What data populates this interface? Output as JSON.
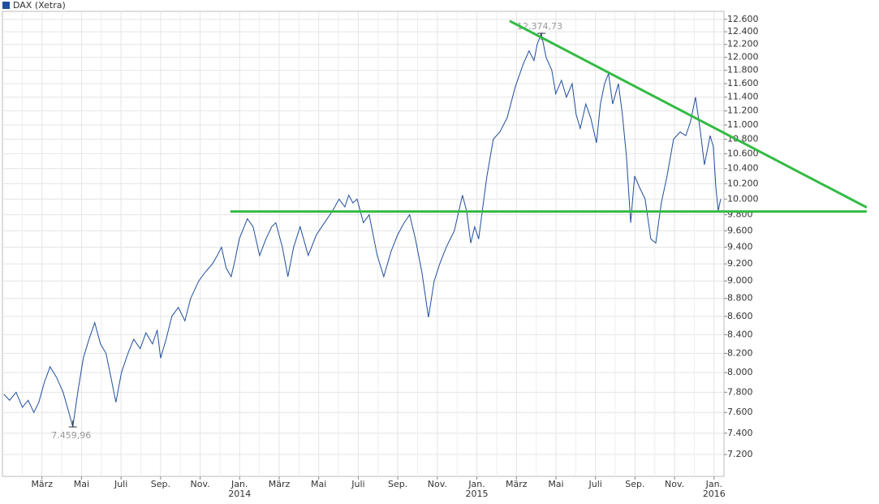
{
  "chart_data": {
    "type": "line",
    "legend": "top-left",
    "log_scale": true,
    "grid": true,
    "series": [
      {
        "name": "DAX (Xetra)",
        "color": "#1f4e9c",
        "values": [
          7780,
          7720,
          7800,
          7650,
          7720,
          7600,
          7700,
          7900,
          8060,
          7950,
          7800,
          7600,
          7459.96,
          7800,
          8150,
          8350,
          8530,
          8300,
          8200,
          7950,
          7700,
          8000,
          8200,
          8350,
          8250,
          8420,
          8300,
          8450,
          8150,
          8350,
          8600,
          8700,
          8550,
          8800,
          9000,
          9100,
          9200,
          9300,
          9400,
          9150,
          9050,
          9250,
          9500,
          9750,
          9650,
          9300,
          9500,
          9650,
          9700,
          9400,
          9050,
          9400,
          9650,
          9300,
          9550,
          9700,
          9850,
          10000,
          9900,
          10050,
          9950,
          10000,
          9700,
          9800,
          9300,
          9050,
          9350,
          9550,
          9700,
          9800,
          9500,
          9100,
          8590,
          9000,
          9200,
          9400,
          9600,
          10050,
          9850,
          9450,
          9650,
          9500,
          9900,
          10300,
          10800,
          10900,
          11100,
          11550,
          11900,
          12100,
          11950,
          12200,
          12374.73,
          12000,
          11800,
          11450,
          11650,
          11400,
          11600,
          11150,
          10950,
          11300,
          11100,
          10750,
          11300,
          11600,
          11750,
          11300,
          11600,
          11150,
          10550,
          9700,
          10300,
          10150,
          10000,
          9500,
          9450,
          9950,
          10300,
          10800,
          10900,
          10850,
          11050,
          11400,
          10900,
          10450,
          10850,
          10700,
          10150,
          9850,
          10000
        ]
      }
    ],
    "x": [
      0.07,
      0.36,
      0.69,
      1.01,
      1.3,
      1.59,
      1.84,
      2.12,
      2.41,
      2.74,
      3.07,
      3.36,
      3.56,
      3.81,
      4.09,
      4.38,
      4.67,
      4.96,
      5.24,
      5.49,
      5.74,
      6.02,
      6.35,
      6.64,
      6.97,
      7.26,
      7.59,
      7.83,
      8.0,
      8.28,
      8.57,
      8.9,
      9.23,
      9.52,
      9.93,
      10.25,
      10.62,
      10.87,
      11.08,
      11.32,
      11.57,
      11.77,
      11.98,
      12.39,
      12.68,
      13.01,
      13.33,
      13.62,
      13.83,
      14.16,
      14.44,
      14.73,
      15.06,
      15.47,
      15.88,
      16.29,
      16.7,
      17.03,
      17.32,
      17.52,
      17.73,
      17.94,
      18.26,
      18.55,
      18.96,
      19.29,
      19.66,
      19.99,
      20.32,
      20.6,
      20.89,
      21.22,
      21.55,
      21.84,
      22.12,
      22.45,
      22.86,
      23.27,
      23.48,
      23.69,
      23.89,
      24.09,
      24.3,
      24.51,
      24.83,
      25.16,
      25.53,
      25.94,
      26.35,
      26.64,
      26.89,
      27.05,
      27.26,
      27.5,
      27.79,
      27.99,
      28.28,
      28.53,
      28.82,
      29.02,
      29.23,
      29.51,
      29.76,
      30.05,
      30.25,
      30.46,
      30.66,
      30.87,
      31.16,
      31.36,
      31.57,
      31.78,
      31.98,
      32.23,
      32.51,
      32.8,
      33.05,
      33.33,
      33.62,
      33.95,
      34.28,
      34.57,
      34.81,
      35.06,
      35.31,
      35.51,
      35.8,
      35.96,
      36.09,
      36.21,
      36.33
    ],
    "xlim": [
      0,
      36.5
    ],
    "xticks": [
      {
        "value": 2,
        "label": "März"
      },
      {
        "value": 4,
        "label": "Mai"
      },
      {
        "value": 6,
        "label": "Juli"
      },
      {
        "value": 8,
        "label": "Sep."
      },
      {
        "value": 10,
        "label": "Nov."
      },
      {
        "value": 12,
        "label": "Jan."
      },
      {
        "value": 14,
        "label": "März"
      },
      {
        "value": 16,
        "label": "Mai"
      },
      {
        "value": 18,
        "label": "Juli"
      },
      {
        "value": 20,
        "label": "Sep."
      },
      {
        "value": 22,
        "label": "Nov."
      },
      {
        "value": 24,
        "label": "Jan."
      },
      {
        "value": 26,
        "label": "März"
      },
      {
        "value": 28,
        "label": "Mai"
      },
      {
        "value": 30,
        "label": "Juli"
      },
      {
        "value": 32,
        "label": "Sep."
      },
      {
        "value": 34,
        "label": "Nov."
      },
      {
        "value": 36,
        "label": "Jan."
      }
    ],
    "xminor_ticks": [
      1,
      3,
      5,
      7,
      9,
      11,
      13,
      15,
      17,
      19,
      21,
      23,
      25,
      27,
      29,
      31,
      33,
      35
    ],
    "year_labels": [
      {
        "value": 12,
        "label": "2014"
      },
      {
        "value": 24,
        "label": "2015"
      },
      {
        "value": 36,
        "label": "2016"
      }
    ],
    "ylim": [
      7000,
      12730
    ],
    "yticks": [
      {
        "value": 7200,
        "label": "7.200"
      },
      {
        "value": 7400,
        "label": "7.400"
      },
      {
        "value": 7600,
        "label": "7.600"
      },
      {
        "value": 7800,
        "label": "7.800"
      },
      {
        "value": 8000,
        "label": "8.000"
      },
      {
        "value": 8200,
        "label": "8.200"
      },
      {
        "value": 8400,
        "label": "8.400"
      },
      {
        "value": 8600,
        "label": "8.600"
      },
      {
        "value": 8800,
        "label": "8.800"
      },
      {
        "value": 9000,
        "label": "9.000"
      },
      {
        "value": 9200,
        "label": "9.200"
      },
      {
        "value": 9400,
        "label": "9.400"
      },
      {
        "value": 9600,
        "label": "9.600"
      },
      {
        "value": 9800,
        "label": "9.800"
      },
      {
        "value": 10000,
        "label": "10.000"
      },
      {
        "value": 10200,
        "label": "10.200"
      },
      {
        "value": 10400,
        "label": "10.400"
      },
      {
        "value": 10600,
        "label": "10.600"
      },
      {
        "value": 10800,
        "label": "10.800"
      },
      {
        "value": 11000,
        "label": "11.000"
      },
      {
        "value": 11200,
        "label": "11.200"
      },
      {
        "value": 11400,
        "label": "11.400"
      },
      {
        "value": 11600,
        "label": "11.600"
      },
      {
        "value": 11800,
        "label": "11.800"
      },
      {
        "value": 12000,
        "label": "12.000"
      },
      {
        "value": 12200,
        "label": "12.200"
      },
      {
        "value": 12400,
        "label": "12.400"
      },
      {
        "value": 12600,
        "label": "12.600"
      }
    ],
    "annotations": [
      {
        "x": 27.26,
        "y": 12374.73,
        "label": "12.374,73",
        "position": "above"
      },
      {
        "x": 3.56,
        "y": 7459.96,
        "label": "7.459,96",
        "position": "below"
      }
    ],
    "trend_lines": [
      {
        "color": "#33bb44",
        "x": [
          11.53,
          43.72
        ],
        "y": [
          9841,
          9841
        ]
      },
      {
        "color": "#33bb44",
        "x": [
          25.66,
          43.72
        ],
        "y": [
          12574,
          9893
        ]
      }
    ]
  }
}
